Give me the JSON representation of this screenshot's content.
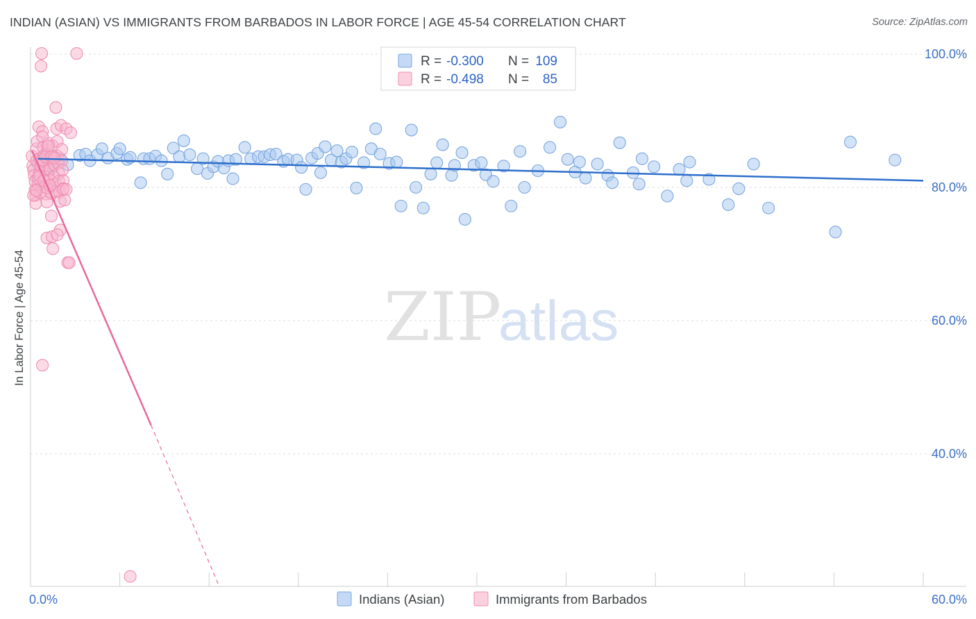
{
  "header": {
    "title": "INDIAN (ASIAN) VS IMMIGRANTS FROM BARBADOS IN LABOR FORCE | AGE 45-54 CORRELATION CHART",
    "source": "Source: ZipAtlas.com"
  },
  "watermark": {
    "zip": "ZIP",
    "atlas": "atlas"
  },
  "legend": {
    "rows": [
      {
        "r_label": "R =",
        "r_value": "-0.300",
        "n_label": "N =",
        "n_value": "109"
      },
      {
        "r_label": "R =",
        "r_value": "-0.498",
        "n_label": "N =",
        "n_value": "85"
      }
    ]
  },
  "chart_data": {
    "type": "scatter",
    "title": "INDIAN (ASIAN) VS IMMIGRANTS FROM BARBADOS IN LABOR FORCE | AGE 45-54 CORRELATION CHART",
    "xlabel": "",
    "ylabel": "In Labor Force | Age 45-54",
    "xlim": [
      0,
      60
    ],
    "ylim": [
      20,
      102
    ],
    "x_tick_labels": [
      "0.0%",
      "60.0%"
    ],
    "y_ticks": [
      40,
      60,
      80,
      100
    ],
    "y_tick_labels": [
      "40.0%",
      "60.0%",
      "80.0%",
      "100.0%"
    ],
    "grid": true,
    "series": [
      {
        "name": "Indians (Asian)",
        "color": "#a8c8f0",
        "stroke": "#7aa6e0",
        "line_color": "#2c6ecb",
        "R": -0.3,
        "N": 109,
        "trend": {
          "x0": 0.5,
          "y0": 84.3,
          "x1": 60,
          "y1": 81.0
        },
        "points": [
          [
            0.5,
            83.5
          ],
          [
            0.8,
            84.5
          ],
          [
            1.0,
            82.8
          ],
          [
            1.2,
            84.2
          ],
          [
            1.5,
            83.0
          ],
          [
            2.0,
            84.3
          ],
          [
            2.5,
            83.4
          ],
          [
            3.3,
            84.8
          ],
          [
            3.7,
            85.0
          ],
          [
            4.0,
            84.0
          ],
          [
            4.5,
            84.9
          ],
          [
            4.8,
            85.8
          ],
          [
            5.2,
            84.4
          ],
          [
            5.8,
            85.1
          ],
          [
            6.0,
            85.8
          ],
          [
            6.5,
            84.2
          ],
          [
            6.7,
            84.5
          ],
          [
            7.4,
            80.7
          ],
          [
            7.6,
            84.3
          ],
          [
            8.0,
            84.3
          ],
          [
            8.4,
            84.7
          ],
          [
            8.8,
            84.0
          ],
          [
            9.2,
            82.0
          ],
          [
            9.6,
            85.9
          ],
          [
            10.0,
            84.6
          ],
          [
            10.3,
            87.0
          ],
          [
            10.7,
            84.9
          ],
          [
            11.2,
            82.8
          ],
          [
            11.6,
            84.3
          ],
          [
            11.9,
            82.1
          ],
          [
            12.3,
            83.1
          ],
          [
            12.6,
            83.9
          ],
          [
            13.0,
            82.9
          ],
          [
            13.3,
            84.0
          ],
          [
            13.6,
            81.3
          ],
          [
            13.8,
            84.2
          ],
          [
            14.4,
            86.0
          ],
          [
            14.8,
            84.3
          ],
          [
            15.3,
            84.6
          ],
          [
            15.7,
            84.6
          ],
          [
            16.1,
            84.9
          ],
          [
            16.5,
            85.0
          ],
          [
            17.0,
            83.9
          ],
          [
            17.3,
            84.2
          ],
          [
            17.9,
            84.1
          ],
          [
            18.2,
            83.0
          ],
          [
            18.5,
            79.7
          ],
          [
            18.9,
            84.4
          ],
          [
            19.3,
            85.1
          ],
          [
            19.5,
            82.2
          ],
          [
            19.8,
            86.1
          ],
          [
            20.2,
            84.1
          ],
          [
            20.6,
            85.5
          ],
          [
            20.9,
            83.8
          ],
          [
            21.2,
            84.3
          ],
          [
            21.6,
            85.3
          ],
          [
            21.9,
            79.9
          ],
          [
            22.4,
            83.7
          ],
          [
            22.9,
            85.8
          ],
          [
            23.2,
            88.8
          ],
          [
            23.5,
            85.0
          ],
          [
            24.1,
            83.6
          ],
          [
            24.6,
            83.8
          ],
          [
            24.9,
            77.2
          ],
          [
            25.6,
            88.6
          ],
          [
            25.9,
            80.0
          ],
          [
            26.4,
            76.9
          ],
          [
            26.9,
            82.0
          ],
          [
            27.3,
            83.7
          ],
          [
            27.7,
            86.4
          ],
          [
            28.3,
            81.8
          ],
          [
            28.5,
            83.3
          ],
          [
            29.0,
            85.2
          ],
          [
            29.2,
            75.2
          ],
          [
            29.8,
            83.3
          ],
          [
            30.3,
            83.7
          ],
          [
            30.6,
            81.9
          ],
          [
            31.1,
            80.9
          ],
          [
            31.8,
            83.2
          ],
          [
            32.3,
            77.2
          ],
          [
            32.9,
            85.4
          ],
          [
            33.2,
            80.0
          ],
          [
            34.1,
            82.5
          ],
          [
            34.9,
            86.0
          ],
          [
            35.6,
            89.8
          ],
          [
            36.1,
            84.2
          ],
          [
            36.6,
            82.3
          ],
          [
            36.9,
            83.8
          ],
          [
            37.3,
            81.4
          ],
          [
            38.1,
            83.5
          ],
          [
            38.8,
            81.8
          ],
          [
            39.1,
            80.7
          ],
          [
            39.6,
            86.7
          ],
          [
            40.5,
            82.2
          ],
          [
            40.9,
            80.5
          ],
          [
            41.1,
            84.3
          ],
          [
            41.9,
            83.1
          ],
          [
            42.8,
            78.7
          ],
          [
            43.6,
            82.7
          ],
          [
            44.1,
            81.0
          ],
          [
            44.3,
            83.8
          ],
          [
            45.6,
            81.2
          ],
          [
            46.9,
            77.4
          ],
          [
            47.6,
            79.8
          ],
          [
            48.6,
            83.5
          ],
          [
            49.6,
            76.9
          ],
          [
            54.1,
            73.3
          ],
          [
            55.1,
            86.8
          ],
          [
            58.1,
            84.1
          ]
        ]
      },
      {
        "name": "Immigrants from Barbados",
        "color": "#f7b6cd",
        "stroke": "#ee8fb0",
        "line_color": "#e8689a",
        "R": -0.498,
        "N": 85,
        "trend": {
          "x0": 0.1,
          "y0": 85.5,
          "x1": 8.1,
          "y1": 44.3,
          "dash_x1": 12.7,
          "dash_y1": 20
        },
        "points": [
          [
            0.1,
            84.7
          ],
          [
            0.15,
            83.2
          ],
          [
            0.2,
            82.6
          ],
          [
            0.25,
            81.8
          ],
          [
            0.3,
            80.9
          ],
          [
            0.3,
            79.6
          ],
          [
            0.35,
            78.8
          ],
          [
            0.35,
            77.6
          ],
          [
            0.4,
            84.0
          ],
          [
            0.4,
            85.8
          ],
          [
            0.45,
            86.9
          ],
          [
            0.5,
            80.4
          ],
          [
            0.5,
            81.4
          ],
          [
            0.55,
            89.1
          ],
          [
            0.6,
            84.3
          ],
          [
            0.6,
            82.1
          ],
          [
            0.65,
            79.2
          ],
          [
            0.7,
            83.1
          ],
          [
            0.7,
            98.2
          ],
          [
            0.75,
            100.1
          ],
          [
            0.8,
            88.4
          ],
          [
            0.8,
            87.6
          ],
          [
            0.85,
            86.0
          ],
          [
            0.9,
            84.8
          ],
          [
            0.9,
            83.9
          ],
          [
            0.95,
            82.8
          ],
          [
            1.0,
            81.6
          ],
          [
            1.0,
            80.1
          ],
          [
            1.05,
            79.0
          ],
          [
            1.1,
            77.8
          ],
          [
            1.1,
            72.4
          ],
          [
            1.15,
            85.6
          ],
          [
            1.2,
            86.6
          ],
          [
            1.2,
            84.3
          ],
          [
            1.25,
            83.2
          ],
          [
            1.3,
            82.6
          ],
          [
            1.3,
            81.1
          ],
          [
            1.35,
            80.2
          ],
          [
            1.4,
            79.1
          ],
          [
            1.4,
            75.7
          ],
          [
            1.45,
            72.6
          ],
          [
            1.5,
            70.8
          ],
          [
            1.5,
            86.2
          ],
          [
            1.55,
            84.6
          ],
          [
            1.6,
            83.4
          ],
          [
            1.6,
            81.6
          ],
          [
            1.65,
            80.5
          ],
          [
            1.7,
            79.4
          ],
          [
            1.7,
            92.0
          ],
          [
            1.75,
            88.8
          ],
          [
            1.8,
            86.9
          ],
          [
            1.8,
            84.7
          ],
          [
            1.85,
            83.6
          ],
          [
            1.9,
            82.1
          ],
          [
            1.9,
            80.9
          ],
          [
            1.95,
            79.3
          ],
          [
            2.0,
            77.9
          ],
          [
            2.0,
            73.6
          ],
          [
            2.05,
            89.3
          ],
          [
            2.1,
            85.7
          ],
          [
            2.1,
            84.0
          ],
          [
            2.15,
            82.6
          ],
          [
            2.2,
            81.0
          ],
          [
            2.2,
            79.8
          ],
          [
            2.3,
            78.1
          ],
          [
            2.4,
            88.8
          ],
          [
            2.5,
            68.7
          ],
          [
            2.6,
            68.7
          ],
          [
            2.7,
            88.2
          ],
          [
            0.2,
            78.8
          ],
          [
            0.4,
            79.5
          ],
          [
            0.6,
            81.7
          ],
          [
            0.8,
            84.1
          ],
          [
            1.0,
            84.6
          ],
          [
            1.2,
            86.2
          ],
          [
            1.4,
            84.6
          ],
          [
            1.6,
            84.4
          ],
          [
            1.8,
            72.9
          ],
          [
            2.2,
            79.7
          ],
          [
            2.4,
            79.7
          ],
          [
            3.1,
            100.1
          ],
          [
            0.8,
            53.3
          ],
          [
            6.7,
            21.6
          ],
          [
            1.1,
            79.9
          ],
          [
            0.9,
            81.0
          ],
          [
            1.3,
            80.3
          ]
        ]
      }
    ]
  },
  "bottom_legend": {
    "items": [
      {
        "label": "Indians (Asian)"
      },
      {
        "label": "Immigrants from Barbados"
      }
    ]
  }
}
